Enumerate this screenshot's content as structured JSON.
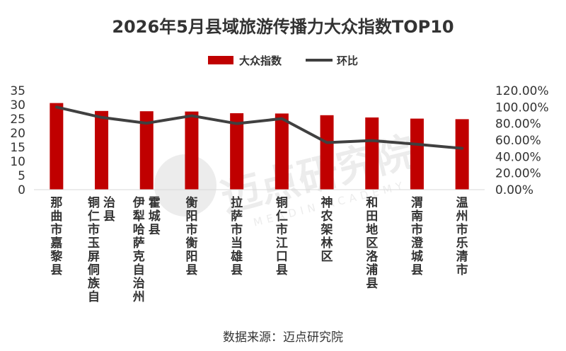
{
  "chart_data": {
    "type": "bar",
    "title": "2026年5月县域旅游传播力大众指数TOP10",
    "categories": [
      [
        "那曲市嘉黎县"
      ],
      [
        "铜仁市玉屏侗族自",
        "治县"
      ],
      [
        "伊犁哈萨克自治州",
        "霍城县"
      ],
      [
        "衡阳市衡阳县"
      ],
      [
        "拉萨市当雄县"
      ],
      [
        "铜仁市江口县"
      ],
      [
        "神农架林区"
      ],
      [
        "和田地区洛浦县"
      ],
      [
        "渭南市澄城县"
      ],
      [
        "温州市乐清市"
      ]
    ],
    "series": [
      {
        "name": "大众指数",
        "kind": "bar",
        "axis": "left",
        "values": [
          30.6,
          27.8,
          27.7,
          27.6,
          27.0,
          26.9,
          26.3,
          25.5,
          25.1,
          24.9
        ]
      },
      {
        "name": "环比",
        "kind": "line",
        "axis": "right",
        "values": [
          100.0,
          87.5,
          80.5,
          89.5,
          80.0,
          86.0,
          57.0,
          59.5,
          55.0,
          50.0
        ]
      }
    ],
    "y_left": {
      "min": 0,
      "max": 35,
      "ticks": [
        "0",
        "5",
        "10",
        "15",
        "20",
        "25",
        "30",
        "35"
      ]
    },
    "y_right": {
      "min": 0,
      "max": 120,
      "ticks": [
        "0.00%",
        "20.00%",
        "40.00%",
        "60.00%",
        "80.00%",
        "100.00%",
        "120.00%"
      ]
    },
    "colors": {
      "bar": "#c00000",
      "line": "#404040"
    },
    "legend_position": "top-center",
    "source": "数据来源：迈点研究院",
    "watermark": {
      "text": "迈点研究院",
      "sub": "MEADIN ACADEMY"
    }
  }
}
